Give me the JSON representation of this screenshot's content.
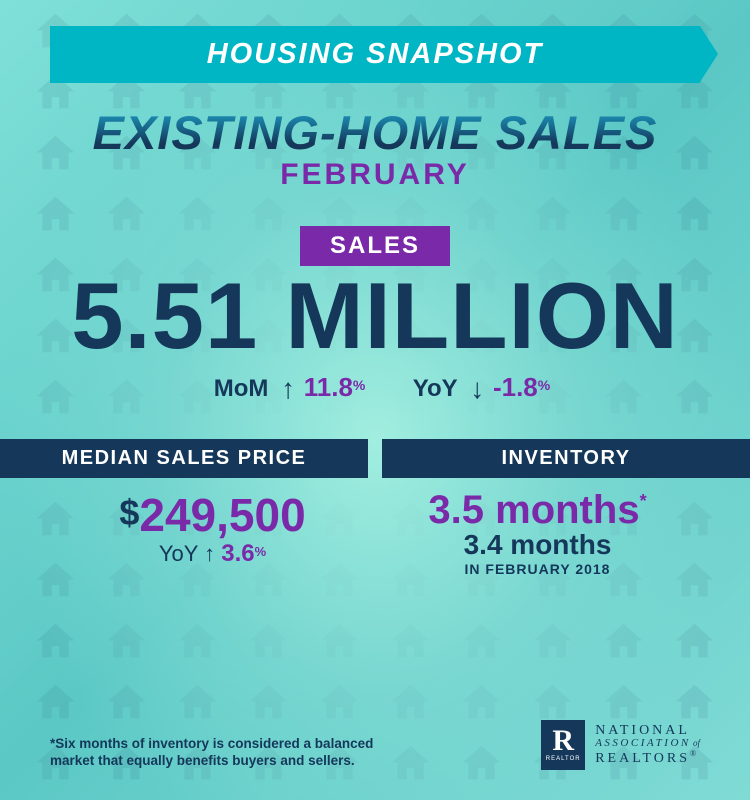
{
  "colors": {
    "navy": "#14375a",
    "teal": "#00b6c4",
    "purple": "#7a2aa8",
    "bg_gradient_start": "#7fe0d8",
    "bg_gradient_end": "#80dbd5"
  },
  "banner": {
    "title": "HOUSING SNAPSHOT",
    "fontsize": 29
  },
  "headline": {
    "main": "EXISTING-HOME SALES",
    "sub": "FEBRUARY",
    "main_fontsize": 47,
    "sub_fontsize": 30
  },
  "sales": {
    "label": "SALES",
    "value": "5.51 MILLION",
    "value_fontsize": 94,
    "mom": {
      "label": "MoM",
      "direction": "up",
      "arrow": "↑",
      "value": "11.8",
      "unit": "%"
    },
    "yoy": {
      "label": "YoY",
      "direction": "down",
      "arrow": "↓",
      "value": "-1.8",
      "unit": "%"
    }
  },
  "median_price": {
    "header": "MEDIAN SALES PRICE",
    "currency": "$",
    "value": "249,500",
    "yoy": {
      "label": "YoY",
      "direction": "up",
      "arrow": "↑",
      "value": "3.6",
      "unit": "%"
    }
  },
  "inventory": {
    "header": "INVENTORY",
    "current": "3.5 months",
    "star": "*",
    "prior": "3.4 months",
    "prior_label": "IN FEBRUARY 2018"
  },
  "footnote": "*Six months of inventory is considered a balanced market that equally benefits buyers and sellers.",
  "logo": {
    "mark_letter": "R",
    "mark_sub": "REALTOR",
    "line1": "NATIONAL",
    "line2_a": "ASSOCIATION",
    "line2_of": " of",
    "line3": "REALTORS",
    "reg": "®"
  }
}
